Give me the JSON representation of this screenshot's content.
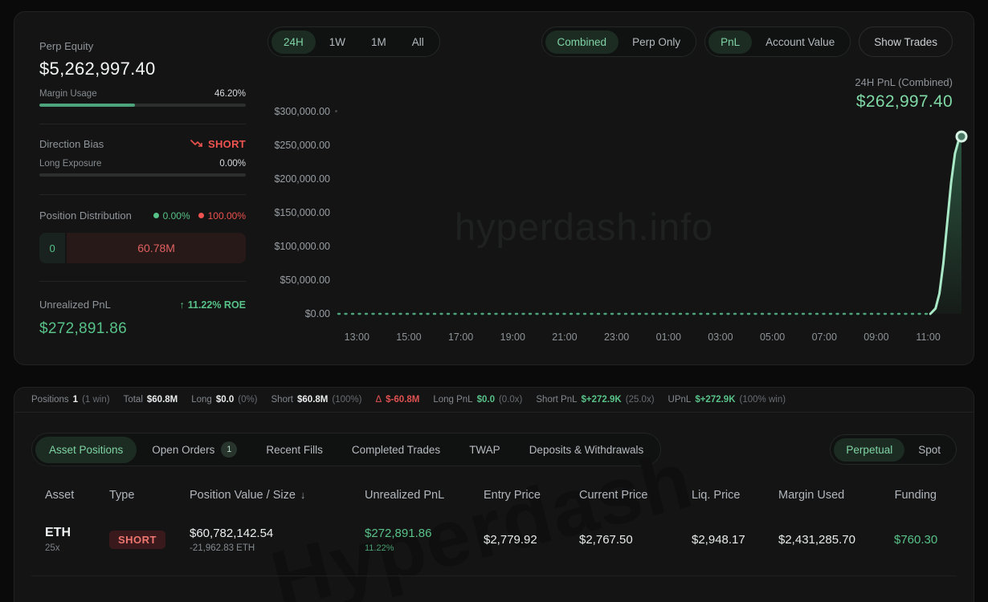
{
  "colors": {
    "green": "#58c289",
    "light_green": "#a9e9c8",
    "red": "#ef5350",
    "pill_active_bg": "#1c2c22",
    "pill_active_text": "#7fd3a4"
  },
  "watermarks": {
    "chart": "hyperdash.info",
    "table": "Hyperdash"
  },
  "left_panel": {
    "perp_equity_label": "Perp Equity",
    "perp_equity_value": "$5,262,997.40",
    "margin_usage_label": "Margin Usage",
    "margin_usage_value": "46.20%",
    "margin_usage_pct": 46.2,
    "direction_bias_label": "Direction Bias",
    "direction_bias_value": "SHORT",
    "long_exposure_label": "Long Exposure",
    "long_exposure_value": "0.00%",
    "long_exposure_pct": 0,
    "position_distribution_label": "Position Distribution",
    "long_pct": "0.00%",
    "short_pct": "100.00%",
    "dist_long_value": "0",
    "dist_short_value": "60.78M",
    "unrealized_pnl_label": "Unrealized PnL",
    "roe_value": "11.22% ROE",
    "roe_arrow": "↑",
    "unrealized_pnl_value": "$272,891.86"
  },
  "controls": {
    "range_tabs": [
      {
        "label": "24H",
        "active": true
      },
      {
        "label": "1W",
        "active": false
      },
      {
        "label": "1M",
        "active": false
      },
      {
        "label": "All",
        "active": false
      }
    ],
    "mode_tabs": [
      {
        "label": "Combined",
        "active": true
      },
      {
        "label": "Perp Only",
        "active": false
      }
    ],
    "metric_tabs": [
      {
        "label": "PnL",
        "active": true
      },
      {
        "label": "Account Value",
        "active": false
      }
    ],
    "show_trades_label": "Show Trades",
    "pnl_header_label": "24H PnL (Combined)",
    "pnl_header_value": "$262,997.40"
  },
  "chart_data": {
    "type": "area",
    "title": "24H PnL (Combined)",
    "current_value": 262997.4,
    "ylim": [
      0,
      300000
    ],
    "xlim": [
      0,
      24
    ],
    "grid": false,
    "legend": false,
    "y_ticks": [
      "$300,000.00",
      "$250,000.00",
      "$200,000.00",
      "$150,000.00",
      "$100,000.00",
      "$50,000.00",
      "$0.00"
    ],
    "x_ticks": [
      "13:00",
      "15:00",
      "17:00",
      "19:00",
      "21:00",
      "23:00",
      "01:00",
      "03:00",
      "05:00",
      "07:00",
      "09:00",
      "11:00"
    ],
    "x_tick_positions": [
      0.72,
      2.72,
      4.72,
      6.72,
      8.72,
      10.72,
      12.72,
      14.72,
      16.72,
      18.72,
      20.72,
      22.72
    ],
    "series": [
      {
        "name": "PnL",
        "points": [
          [
            0,
            0
          ],
          [
            2,
            0
          ],
          [
            4,
            0
          ],
          [
            6,
            0
          ],
          [
            8,
            0
          ],
          [
            10,
            0
          ],
          [
            12,
            0
          ],
          [
            14,
            0
          ],
          [
            16,
            0
          ],
          [
            18,
            0
          ],
          [
            20,
            0
          ],
          [
            22,
            0
          ],
          [
            22.8,
            0
          ],
          [
            23.0,
            8000
          ],
          [
            23.15,
            30000
          ],
          [
            23.3,
            75000
          ],
          [
            23.45,
            135000
          ],
          [
            23.6,
            195000
          ],
          [
            23.75,
            238000
          ],
          [
            23.88,
            256000
          ],
          [
            24,
            262997.4
          ]
        ]
      }
    ]
  },
  "summary": {
    "items": [
      {
        "label": "Positions",
        "value": "1",
        "extra": "(1 win)"
      },
      {
        "label": "Total",
        "value": "$60.8M",
        "extra": ""
      },
      {
        "label": "Long",
        "value": "$0.0",
        "extra": "(0%)"
      },
      {
        "label": "Short",
        "value": "$60.8M",
        "extra": "(100%)"
      },
      {
        "label": "Δ",
        "value": "$-60.8M",
        "extra": ""
      },
      {
        "label": "Long PnL",
        "value": "$0.0",
        "extra": "(0.0x)"
      },
      {
        "label": "Short PnL",
        "value": "$+272.9K",
        "extra": "(25.0x)"
      },
      {
        "label": "UPnL",
        "value": "$+272.9K",
        "extra": "(100% win)"
      }
    ]
  },
  "bottom_tabs": [
    {
      "label": "Asset Positions",
      "active": true
    },
    {
      "label": "Open Orders",
      "badge": "1",
      "active": false
    },
    {
      "label": "Recent Fills",
      "active": false
    },
    {
      "label": "Completed Trades",
      "active": false
    },
    {
      "label": "TWAP",
      "active": false
    },
    {
      "label": "Deposits & Withdrawals",
      "active": false
    }
  ],
  "market_tabs": [
    {
      "label": "Perpetual",
      "active": true
    },
    {
      "label": "Spot",
      "active": false
    }
  ],
  "table": {
    "columns": [
      "Asset",
      "Type",
      "Position Value / Size",
      "Unrealized PnL",
      "Entry Price",
      "Current Price",
      "Liq. Price",
      "Margin Used",
      "Funding"
    ],
    "sort_column": "Position Value / Size",
    "sort_icon": "↓",
    "rows": [
      {
        "asset": "ETH",
        "leverage": "25x",
        "type": "SHORT",
        "position_value": "$60,782,142.54",
        "size": "-21,962.83 ETH",
        "unrealized_pnl": "$272,891.86",
        "unrealized_pnl_pct": "11.22%",
        "entry_price": "$2,779.92",
        "current_price": "$2,767.50",
        "liq_price": "$2,948.17",
        "margin_used": "$2,431,285.70",
        "funding": "$760.30"
      }
    ]
  }
}
